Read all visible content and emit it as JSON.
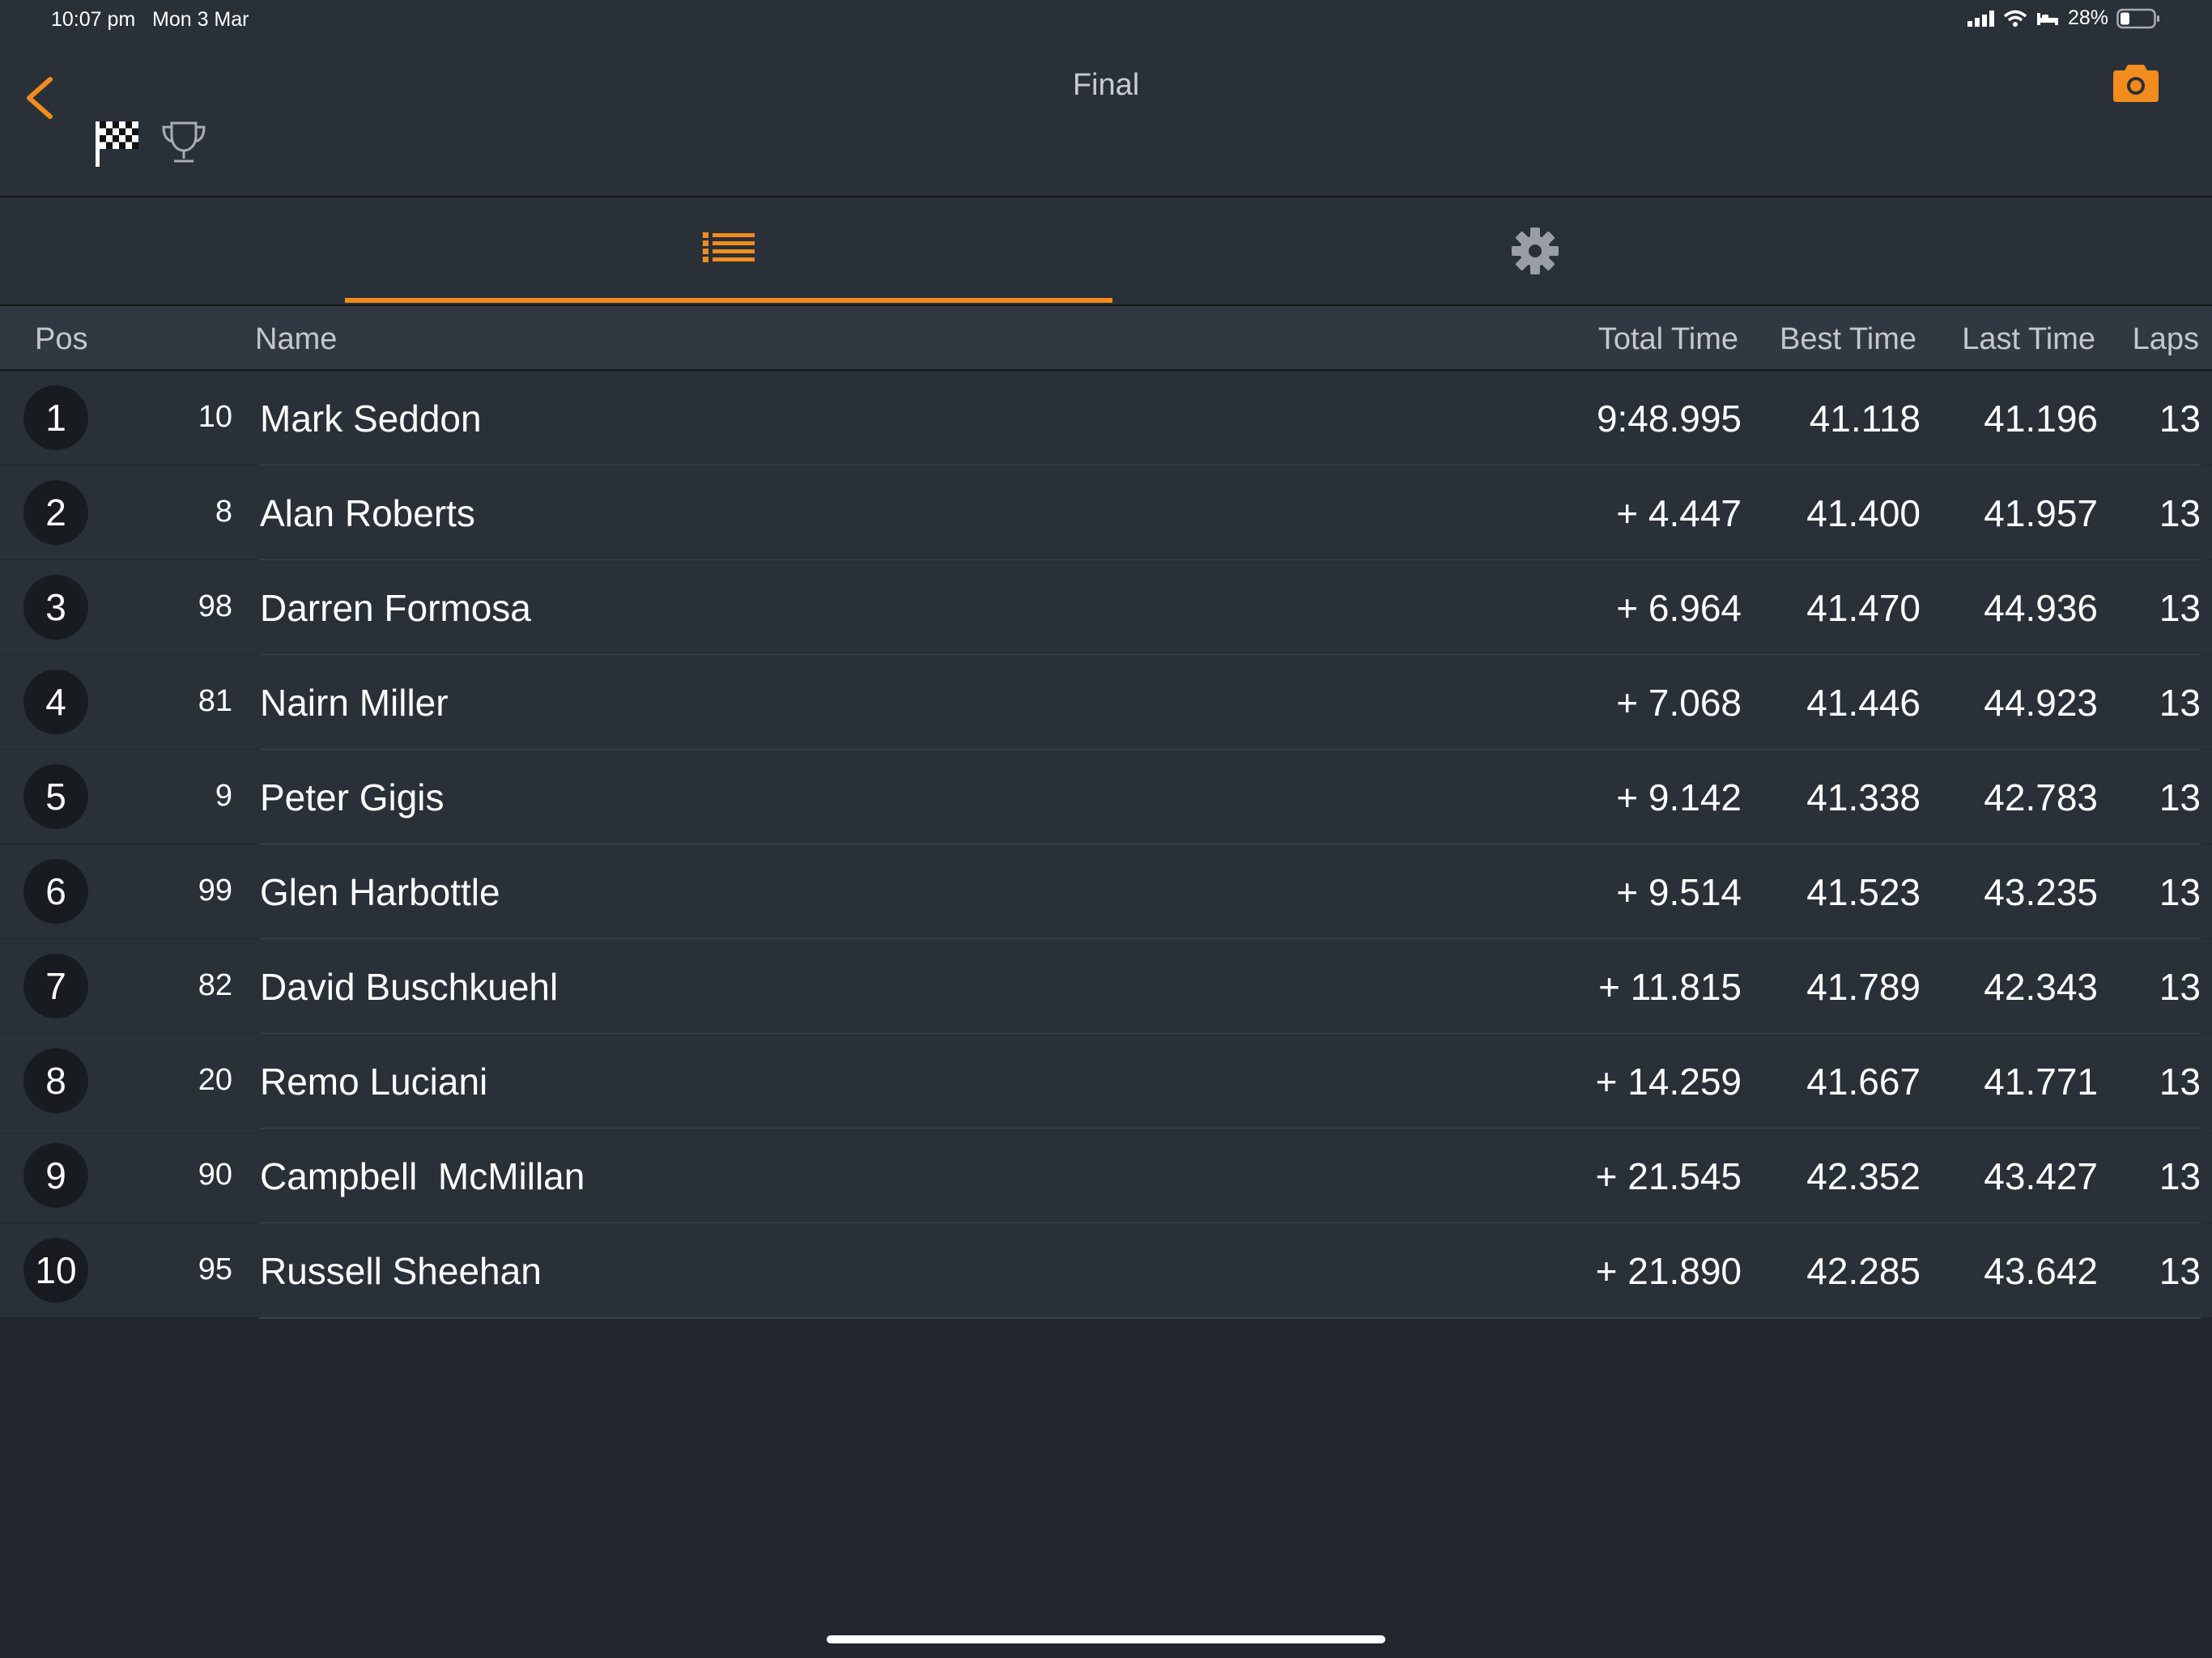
{
  "status_bar": {
    "time": "10:07 pm",
    "date": "Mon 3 Mar",
    "battery_percent": "28%",
    "battery_level": 0.28
  },
  "header": {
    "title": "Final",
    "icons": [
      "back-chevron-icon",
      "checkered-flag-icon",
      "trophy-icon",
      "camera-icon"
    ]
  },
  "tabs": [
    {
      "icon": "list-icon",
      "active": true
    },
    {
      "icon": "gear-icon",
      "active": false
    }
  ],
  "table": {
    "columns": [
      "Pos",
      "Name",
      "Total Time",
      "Best Time",
      "Last Time",
      "Laps"
    ],
    "rows": [
      {
        "pos": "1",
        "num": "10",
        "name": "Mark Seddon",
        "total": "9:48.995",
        "best": "41.118",
        "last": "41.196",
        "laps": "13"
      },
      {
        "pos": "2",
        "num": "8",
        "name": "Alan Roberts",
        "total": "+ 4.447",
        "best": "41.400",
        "last": "41.957",
        "laps": "13"
      },
      {
        "pos": "3",
        "num": "98",
        "name": "Darren Formosa",
        "total": "+ 6.964",
        "best": "41.470",
        "last": "44.936",
        "laps": "13"
      },
      {
        "pos": "4",
        "num": "81",
        "name": "Nairn Miller",
        "total": "+ 7.068",
        "best": "41.446",
        "last": "44.923",
        "laps": "13"
      },
      {
        "pos": "5",
        "num": "9",
        "name": "Peter Gigis",
        "total": "+ 9.142",
        "best": "41.338",
        "last": "42.783",
        "laps": "13"
      },
      {
        "pos": "6",
        "num": "99",
        "name": "Glen Harbottle",
        "total": "+ 9.514",
        "best": "41.523",
        "last": "43.235",
        "laps": "13"
      },
      {
        "pos": "7",
        "num": "82",
        "name": "David Buschkuehl",
        "total": "+ 11.815",
        "best": "41.789",
        "last": "42.343",
        "laps": "13"
      },
      {
        "pos": "8",
        "num": "20",
        "name": "Remo Luciani",
        "total": "+ 14.259",
        "best": "41.667",
        "last": "41.771",
        "laps": "13"
      },
      {
        "pos": "9",
        "num": "90",
        "name": "Campbell  McMillan",
        "total": "+ 21.545",
        "best": "42.352",
        "last": "43.427",
        "laps": "13"
      },
      {
        "pos": "10",
        "num": "95",
        "name": "Russell Sheehan",
        "total": "+ 21.890",
        "best": "42.285",
        "last": "43.642",
        "laps": "13"
      }
    ]
  },
  "colors": {
    "accent": "#f28c1e",
    "background": "#22272e",
    "row": "#2a3038",
    "header_row": "#323841"
  }
}
